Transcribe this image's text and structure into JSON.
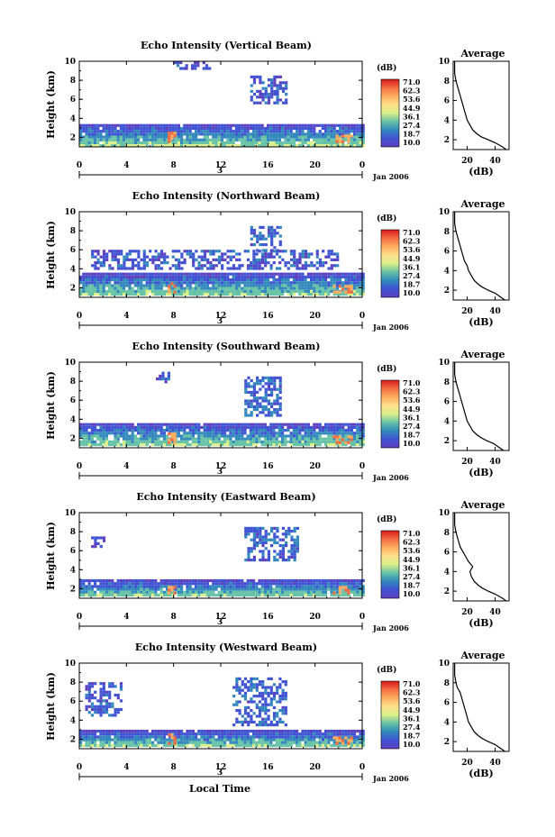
{
  "figure": {
    "x_label": "Local Time",
    "date_label": "Jan 2006",
    "day_marker": "3",
    "colorbar_unit": "(dB)",
    "colorbar_ticks": [
      "71.0",
      "62.3",
      "53.6",
      "44.9",
      "36.1",
      "27.4",
      "18.7",
      "10.0"
    ],
    "colorbar_colors": [
      "#d7191c",
      "#f46d43",
      "#fdae61",
      "#fee08b",
      "#d9ef8b",
      "#66c2a5",
      "#3288bd",
      "#4053d3",
      "#5e3fbe"
    ],
    "panel_bg": "#ffffff",
    "echo_base_color": "#4a56e2"
  },
  "chart_data": [
    {
      "type": "heatmap",
      "title": "Echo Intensity (Vertical Beam)",
      "ylabel": "Height (km)",
      "xlabel": "",
      "x_ticks": [
        "0",
        "4",
        "8",
        "12",
        "16",
        "20",
        "0"
      ],
      "y_ticks": [
        "2",
        "4",
        "6",
        "8",
        "10"
      ],
      "xlim": [
        0,
        24
      ],
      "ylim": [
        1,
        10
      ],
      "zlim": [
        10.0,
        71.0
      ],
      "colorbar_label": "(dB)",
      "regions": [
        {
          "desc": "boundary-layer echo",
          "x": [
            0,
            24
          ],
          "y": [
            1.2,
            3.4
          ],
          "value": 30
        },
        {
          "desc": "strong low-level echo",
          "x": [
            7.5,
            8.2
          ],
          "y": [
            1.6,
            2.6
          ],
          "value": 60
        },
        {
          "desc": "strong low-level echo",
          "x": [
            21.5,
            23.2
          ],
          "y": [
            1.4,
            2.3
          ],
          "value": 60
        },
        {
          "desc": "upper echo patches",
          "x": [
            14.5,
            17.5
          ],
          "y": [
            5.5,
            8.5
          ],
          "value": 18
        },
        {
          "desc": "upper echo patches",
          "x": [
            8,
            11
          ],
          "y": [
            9.3,
            10
          ],
          "value": 15
        }
      ]
    },
    {
      "type": "line",
      "title": "Average",
      "xlabel": "(dB)",
      "ylabel": "",
      "x_ticks": [
        "20",
        "40"
      ],
      "y_ticks": [
        "2",
        "4",
        "6",
        "8",
        "10"
      ],
      "xlim": [
        10,
        50
      ],
      "ylim": [
        1,
        10
      ],
      "x": [
        48,
        45,
        40,
        35,
        30,
        27,
        24,
        22,
        20,
        19,
        18,
        17,
        16,
        15,
        14,
        13,
        12,
        11,
        11
      ],
      "y": [
        1.0,
        1.3,
        1.7,
        2.0,
        2.3,
        2.6,
        3.0,
        3.5,
        4.0,
        4.5,
        5.0,
        5.5,
        6.0,
        6.5,
        7.0,
        7.5,
        8.0,
        8.8,
        10.0
      ]
    },
    {
      "type": "heatmap",
      "title": "Echo Intensity (Northward Beam)",
      "ylabel": "Height (km)",
      "xlabel": "",
      "x_ticks": [
        "0",
        "4",
        "8",
        "12",
        "16",
        "20",
        "0"
      ],
      "y_ticks": [
        "2",
        "4",
        "6",
        "8",
        "10"
      ],
      "xlim": [
        0,
        24
      ],
      "ylim": [
        1,
        10
      ],
      "zlim": [
        10.0,
        71.0
      ],
      "colorbar_label": "(dB)",
      "regions": [
        {
          "desc": "boundary-layer echo",
          "x": [
            0,
            24
          ],
          "y": [
            1.2,
            3.6
          ],
          "value": 30
        },
        {
          "desc": "strong low-level echo",
          "x": [
            7.5,
            8.2
          ],
          "y": [
            1.6,
            2.6
          ],
          "value": 60
        },
        {
          "desc": "strong low-level echo",
          "x": [
            21.5,
            23.2
          ],
          "y": [
            1.4,
            2.3
          ],
          "value": 60
        },
        {
          "desc": "mid-level layers",
          "x": [
            1,
            22
          ],
          "y": [
            4.0,
            6.0
          ],
          "value": 18
        },
        {
          "desc": "upper echo patch",
          "x": [
            14.5,
            17
          ],
          "y": [
            6.0,
            8.5
          ],
          "value": 20
        }
      ]
    },
    {
      "type": "line",
      "title": "Average",
      "xlabel": "(dB)",
      "ylabel": "",
      "x_ticks": [
        "20",
        "40"
      ],
      "y_ticks": [
        "2",
        "4",
        "6",
        "8",
        "10"
      ],
      "xlim": [
        10,
        50
      ],
      "ylim": [
        1,
        10
      ],
      "x": [
        47,
        44,
        40,
        35,
        31,
        28,
        25,
        23,
        21,
        20,
        18,
        17,
        16,
        15,
        14,
        13,
        12,
        11,
        11
      ],
      "y": [
        1.0,
        1.3,
        1.7,
        2.0,
        2.3,
        2.6,
        3.0,
        3.5,
        4.0,
        4.5,
        5.0,
        5.5,
        6.0,
        6.5,
        7.0,
        7.5,
        8.0,
        8.8,
        10.0
      ]
    },
    {
      "type": "heatmap",
      "title": "Echo Intensity (Southward Beam)",
      "ylabel": "Height (km)",
      "xlabel": "",
      "x_ticks": [
        "0",
        "4",
        "8",
        "12",
        "16",
        "20",
        "0"
      ],
      "y_ticks": [
        "2",
        "4",
        "6",
        "8",
        "10"
      ],
      "xlim": [
        0,
        24
      ],
      "ylim": [
        1,
        10
      ],
      "zlim": [
        10.0,
        71.0
      ],
      "colorbar_label": "(dB)",
      "regions": [
        {
          "desc": "boundary-layer echo",
          "x": [
            0,
            24
          ],
          "y": [
            1.2,
            3.6
          ],
          "value": 30
        },
        {
          "desc": "strong low-level echo",
          "x": [
            7.5,
            8.2
          ],
          "y": [
            1.6,
            2.6
          ],
          "value": 60
        },
        {
          "desc": "strong low-level echo",
          "x": [
            21.5,
            23.2
          ],
          "y": [
            1.4,
            2.3
          ],
          "value": 60
        },
        {
          "desc": "upper echo patch",
          "x": [
            14,
            17
          ],
          "y": [
            4.5,
            8.5
          ],
          "value": 20
        },
        {
          "desc": "upper echo patch",
          "x": [
            6.5,
            7.5
          ],
          "y": [
            8.0,
            9.0
          ],
          "value": 18
        }
      ]
    },
    {
      "type": "line",
      "title": "Average",
      "xlabel": "(dB)",
      "ylabel": "",
      "x_ticks": [
        "20",
        "40"
      ],
      "y_ticks": [
        "2",
        "4",
        "6",
        "8",
        "10"
      ],
      "xlim": [
        10,
        50
      ],
      "ylim": [
        1,
        10
      ],
      "x": [
        46,
        43,
        39,
        34,
        30,
        27,
        24,
        22,
        20,
        19,
        18,
        17,
        16,
        15,
        14,
        13,
        12,
        11,
        11
      ],
      "y": [
        1.0,
        1.3,
        1.7,
        2.0,
        2.3,
        2.6,
        3.0,
        3.5,
        4.0,
        4.5,
        5.0,
        5.5,
        6.0,
        6.5,
        7.0,
        7.5,
        8.0,
        8.8,
        10.0
      ]
    },
    {
      "type": "heatmap",
      "title": "Echo Intensity (Eastward Beam)",
      "ylabel": "Height (km)",
      "xlabel": "",
      "x_ticks": [
        "0",
        "4",
        "8",
        "12",
        "16",
        "20",
        "0"
      ],
      "y_ticks": [
        "2",
        "4",
        "6",
        "8",
        "10"
      ],
      "xlim": [
        0,
        24
      ],
      "ylim": [
        1,
        10
      ],
      "zlim": [
        10.0,
        71.0
      ],
      "colorbar_label": "(dB)",
      "regions": [
        {
          "desc": "boundary-layer echo",
          "x": [
            0,
            24
          ],
          "y": [
            1.2,
            3.0
          ],
          "value": 30
        },
        {
          "desc": "strong low-level echo",
          "x": [
            7.5,
            8.2
          ],
          "y": [
            1.6,
            2.6
          ],
          "value": 60
        },
        {
          "desc": "strong low-level echo",
          "x": [
            21.5,
            23.2
          ],
          "y": [
            1.4,
            2.3
          ],
          "value": 60
        },
        {
          "desc": "mid-level echo block",
          "x": [
            14,
            18.5
          ],
          "y": [
            5.0,
            8.5
          ],
          "value": 20
        },
        {
          "desc": "small patch",
          "x": [
            1,
            2
          ],
          "y": [
            6.5,
            7.5
          ],
          "value": 15
        }
      ]
    },
    {
      "type": "line",
      "title": "Average",
      "xlabel": "(dB)",
      "ylabel": "",
      "x_ticks": [
        "20",
        "40"
      ],
      "y_ticks": [
        "2",
        "4",
        "6",
        "8",
        "10"
      ],
      "xlim": [
        10,
        50
      ],
      "ylim": [
        1,
        10
      ],
      "x": [
        48,
        45,
        40,
        35,
        31,
        28,
        25,
        23,
        22,
        24,
        21,
        19,
        17,
        15,
        14,
        13,
        12,
        11,
        11
      ],
      "y": [
        1.0,
        1.3,
        1.7,
        2.0,
        2.3,
        2.6,
        3.0,
        3.5,
        4.0,
        4.5,
        5.0,
        5.5,
        6.0,
        6.5,
        7.0,
        7.5,
        8.0,
        8.8,
        10.0
      ]
    },
    {
      "type": "heatmap",
      "title": "Echo Intensity (Westward Beam)",
      "ylabel": "Height (km)",
      "xlabel": "Local Time",
      "x_ticks": [
        "0",
        "4",
        "8",
        "12",
        "16",
        "20",
        "0"
      ],
      "y_ticks": [
        "2",
        "4",
        "6",
        "8",
        "10"
      ],
      "xlim": [
        0,
        24
      ],
      "ylim": [
        1,
        10
      ],
      "zlim": [
        10.0,
        71.0
      ],
      "colorbar_label": "(dB)",
      "regions": [
        {
          "desc": "boundary-layer echo",
          "x": [
            0,
            24
          ],
          "y": [
            1.2,
            3.0
          ],
          "value": 30
        },
        {
          "desc": "strong low-level echo",
          "x": [
            7.5,
            8.2
          ],
          "y": [
            1.6,
            2.6
          ],
          "value": 60
        },
        {
          "desc": "strong low-level echo",
          "x": [
            21.5,
            23.2
          ],
          "y": [
            1.4,
            2.3
          ],
          "value": 60
        },
        {
          "desc": "upper echo patch",
          "x": [
            0.5,
            3.5
          ],
          "y": [
            4.5,
            8.0
          ],
          "value": 18
        },
        {
          "desc": "upper echo patch",
          "x": [
            13,
            17.5
          ],
          "y": [
            3.5,
            8.5
          ],
          "value": 20
        }
      ]
    },
    {
      "type": "line",
      "title": "Average",
      "xlabel": "(dB)",
      "ylabel": "",
      "x_ticks": [
        "20",
        "40"
      ],
      "y_ticks": [
        "2",
        "4",
        "6",
        "8",
        "10"
      ],
      "xlim": [
        10,
        50
      ],
      "ylim": [
        1,
        10
      ],
      "x": [
        47,
        44,
        40,
        35,
        31,
        28,
        25,
        23,
        21,
        20,
        19,
        18,
        17,
        16,
        15,
        13,
        12,
        11,
        11
      ],
      "y": [
        1.0,
        1.3,
        1.7,
        2.0,
        2.3,
        2.6,
        3.0,
        3.5,
        4.0,
        4.5,
        5.0,
        5.5,
        6.0,
        6.5,
        7.0,
        7.5,
        8.0,
        8.8,
        10.0
      ]
    }
  ]
}
